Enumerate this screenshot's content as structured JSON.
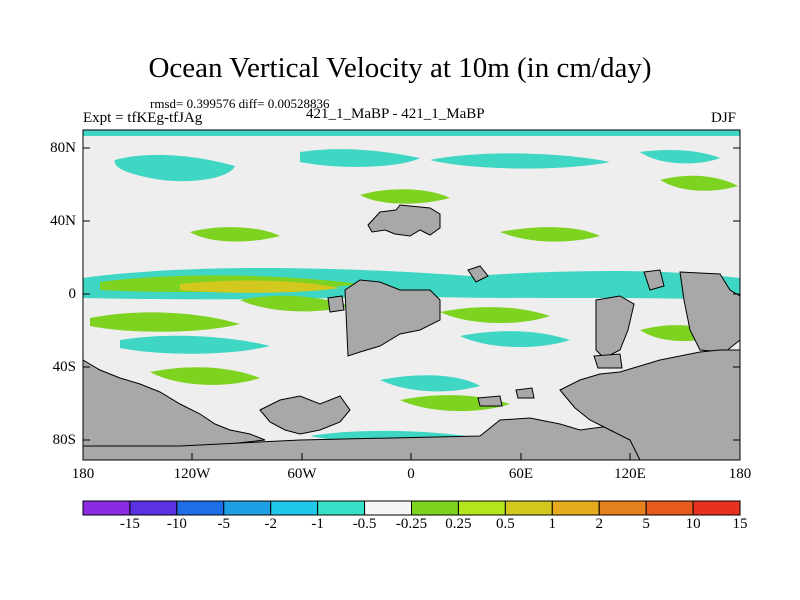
{
  "title": "Ocean Vertical Velocity at 10m (in cm/day)",
  "stats": "rmsd= 0.399576 diff= 0.00528836",
  "experiment": "Expt = tfKEg-tfJAg",
  "runs": "421_1_MaBP - 421_1_MaBP",
  "season": "DJF",
  "y_ticks": [
    "80N",
    "40N",
    "0",
    "40S",
    "80S"
  ],
  "x_ticks": [
    "180",
    "120W",
    "60W",
    "0",
    "60E",
    "120E",
    "180"
  ],
  "colorbar": {
    "colors": [
      "#8a2be2",
      "#5a32e0",
      "#1e6ee6",
      "#1ea0e6",
      "#1ec8e6",
      "#37e0c8",
      "#f5f5f5",
      "#7ed321",
      "#b4e61e",
      "#d2c81e",
      "#e6aa1e",
      "#e6821e",
      "#e65a1e",
      "#e6321e"
    ],
    "labels": [
      "-15",
      "-10",
      "-5",
      "-2",
      "-1",
      "-0.5",
      "-0.25",
      "0.25",
      "0.5",
      "1",
      "2",
      "5",
      "10",
      "15"
    ]
  }
}
